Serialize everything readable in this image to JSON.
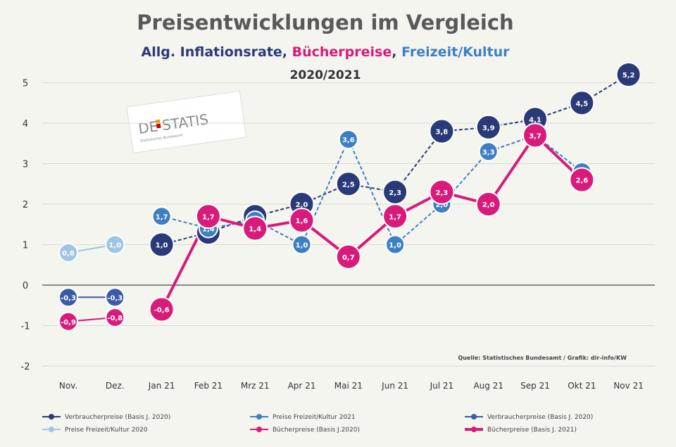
{
  "colors": {
    "inflation": "#2a3a78",
    "inflation_2020": "#3a5aa6",
    "culture_2021": "#3d7fc4",
    "culture_2020": "#9ec4e6",
    "books_2020": "#d81b7a",
    "books_2021": "#d81b7a",
    "axis": "#666666",
    "grid": "#d8dccf"
  },
  "logo": {
    "text_de": "DE",
    "text_statis": "STATIS",
    "subtitle": "Statistisches Bundesamt"
  },
  "chart_data": {
    "type": "line",
    "title": "Preisentwicklungen im  Vergleich",
    "subtitle_parts": [
      {
        "text": "Allg. Inflationsrate, ",
        "color": "#2a3a78"
      },
      {
        "text": "Bücherpreise",
        "color": "#d81b7a"
      },
      {
        "text": ", ",
        "color": "#2a3a78"
      },
      {
        "text": "Freizeit/Kultur",
        "color": "#3d7fc4"
      }
    ],
    "period": "2020/2021",
    "categories": [
      "Nov.",
      "Dez.",
      "Jan 21",
      "Feb 21",
      "Mrz 21",
      "Apr 21",
      "Mai 21",
      "Jun 21",
      "Jul 21",
      "Aug 21",
      "Sep 21",
      "Okt 21",
      "Nov 21"
    ],
    "ylim": [
      -2,
      5
    ],
    "yticks": [
      -2,
      -1,
      0,
      1,
      2,
      3,
      4,
      5
    ],
    "grid": true,
    "legend_position": "bottom",
    "source": "Quelle: Statistisches Bundesamt / Grafik: dir-info/KW",
    "series": [
      {
        "name": "Verbraucherpreise (Basis J. 2020)",
        "key": "inflation",
        "marker_size": "large",
        "values": [
          null,
          null,
          1.0,
          1.3,
          1.7,
          2.0,
          2.5,
          2.3,
          3.8,
          3.9,
          4.1,
          4.5,
          5.2
        ],
        "labels": [
          "",
          "",
          "1,0",
          "1,3",
          "1,7",
          "2,0",
          "2,5",
          "2,3",
          "3,8",
          "3,9",
          "4,1",
          "4,5",
          "5,2"
        ]
      },
      {
        "name": "Preise Freizeit/Kultur 2021",
        "key": "culture_2021",
        "marker_size": "medium",
        "values": [
          null,
          null,
          1.7,
          1.4,
          1.6,
          1.0,
          3.6,
          1.0,
          2.0,
          3.3,
          3.7,
          2.8,
          null
        ],
        "labels": [
          "",
          "",
          "1,7",
          "1,4",
          "1,6",
          "1,0",
          "3,6",
          "1,0",
          "2,0",
          "3,3",
          "3,7",
          "2,8",
          ""
        ]
      },
      {
        "name": "Verbraucherpreise (Basis J. 2020)",
        "key": "inflation_2020",
        "marker_size": "medium",
        "values": [
          -0.3,
          -0.3,
          null,
          null,
          null,
          null,
          null,
          null,
          null,
          null,
          null,
          null,
          null
        ],
        "labels": [
          "-0,3",
          "-0,3",
          "",
          "",
          "",
          "",
          "",
          "",
          "",
          "",
          "",
          "",
          ""
        ]
      },
      {
        "name": "Preise Freizeit/Kultur 2020",
        "key": "culture_2020",
        "marker_size": "medium",
        "values": [
          0.8,
          1.0,
          null,
          null,
          null,
          null,
          null,
          null,
          null,
          null,
          null,
          null,
          null
        ],
        "labels": [
          "0,8",
          "1,0",
          "",
          "",
          "",
          "",
          "",
          "",
          "",
          "",
          "",
          "",
          ""
        ]
      },
      {
        "name": "Bücherpreise (Basis J.2020)",
        "key": "books_2020",
        "marker_size": "medium",
        "values": [
          -0.9,
          -0.8,
          null,
          null,
          null,
          null,
          null,
          null,
          null,
          null,
          null,
          null,
          null
        ],
        "labels": [
          "-0,9",
          "-0,8",
          "",
          "",
          "",
          "",
          "",
          "",
          "",
          "",
          "",
          "",
          ""
        ]
      },
      {
        "name": "Bücherpreise (Basis J. 2021)",
        "key": "books_2021",
        "marker_size": "large",
        "values": [
          null,
          null,
          -0.6,
          1.7,
          1.4,
          1.6,
          0.7,
          1.7,
          2.3,
          2.0,
          3.7,
          2.6,
          null
        ],
        "labels": [
          "",
          "",
          "-0,6",
          "1,7",
          "1,4",
          "1,6",
          "0,7",
          "1,7",
          "2,3",
          "2,0",
          "3,7",
          "2,6",
          ""
        ]
      }
    ]
  }
}
